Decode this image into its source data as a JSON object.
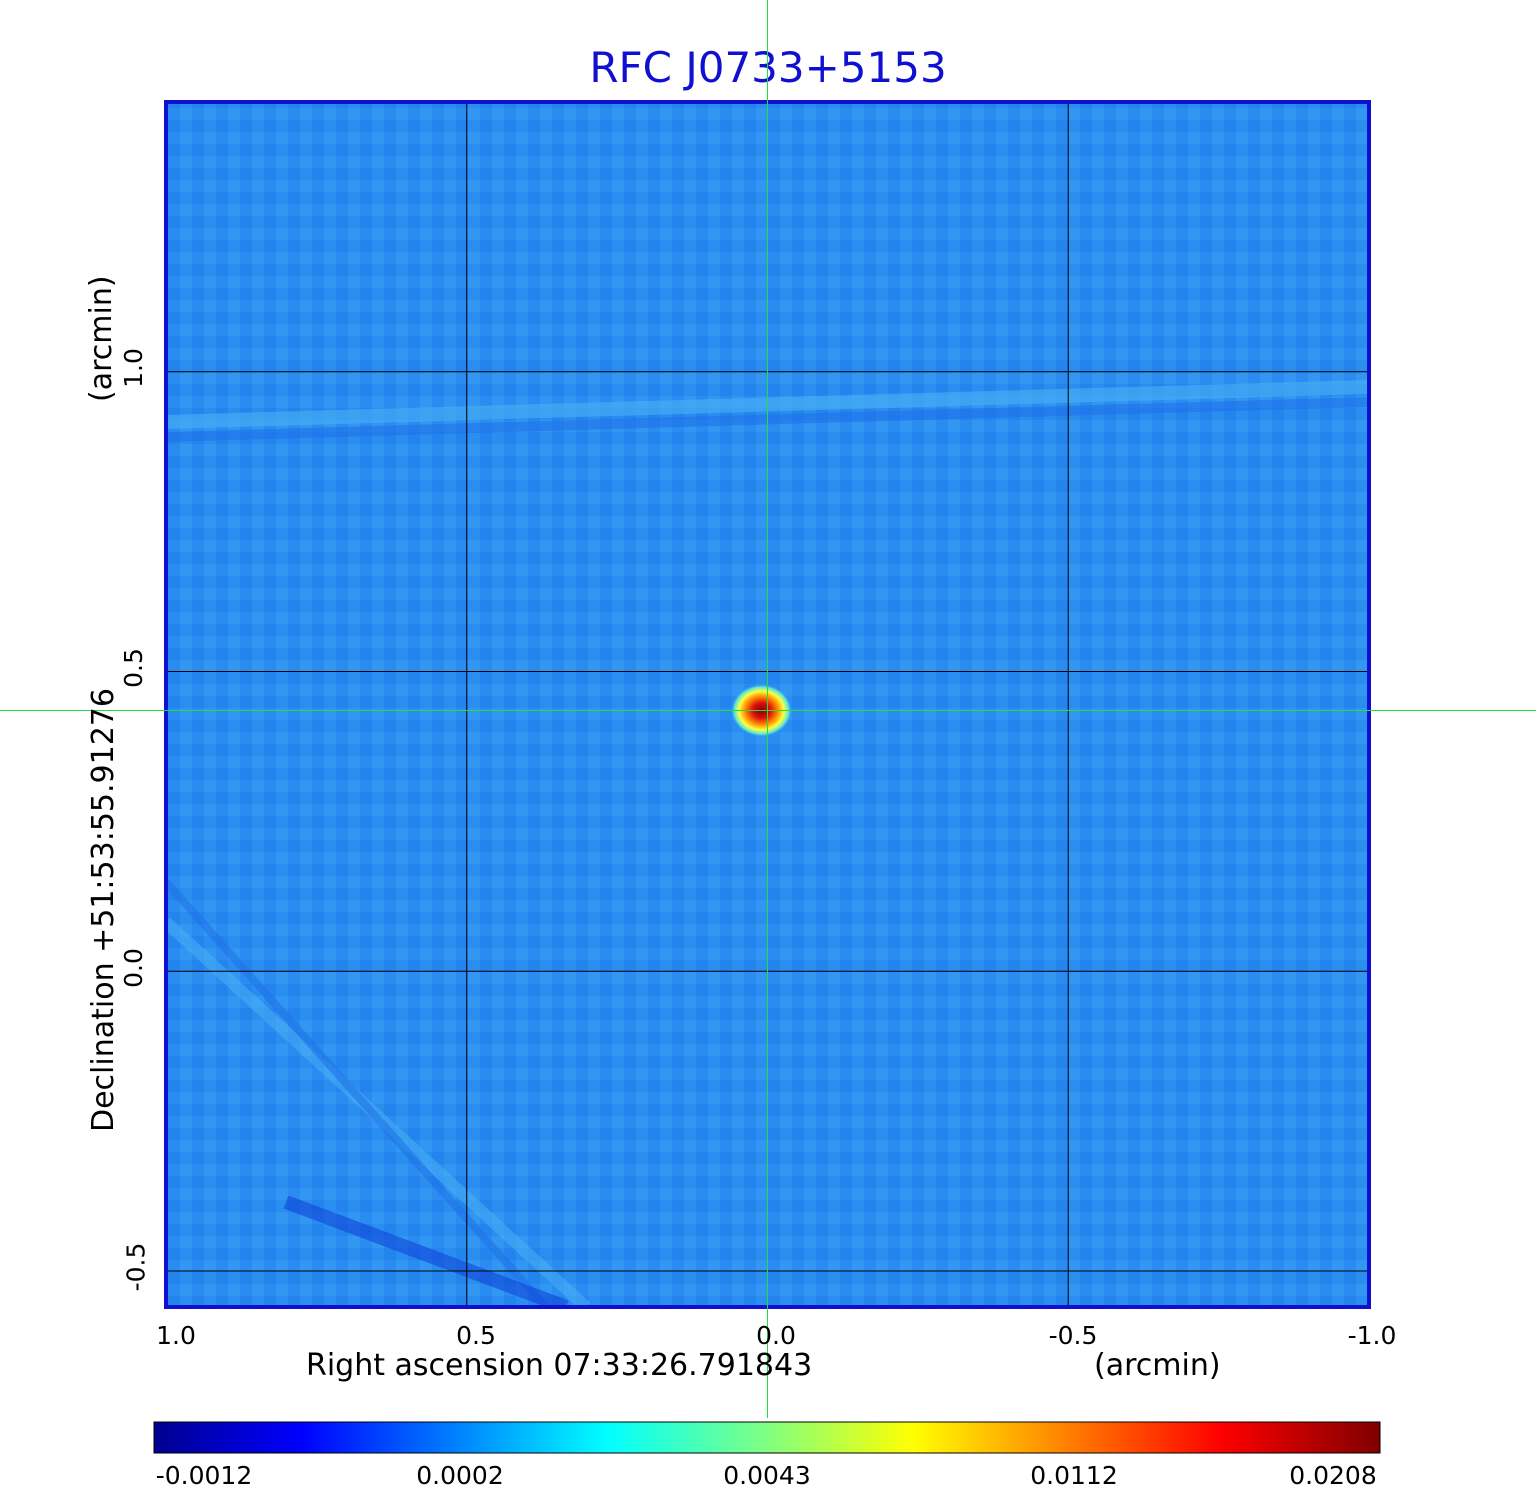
{
  "chart_data": {
    "type": "heatmap",
    "title": "RFC J0733+5153",
    "xlabel": "Right ascension  07:33:26.791843",
    "xunit": "(arcmin)",
    "ylabel": "Declination  +51:53:55.91276",
    "yunit": "(arcmin)",
    "xlim": [
      1.0,
      -1.0
    ],
    "ylim": [
      -0.56,
      1.45
    ],
    "x_ticks": [
      "1.0",
      "0.5",
      "0.0",
      "-0.5",
      "-1.0"
    ],
    "x_tick_values": [
      1.0,
      0.5,
      0.0,
      -0.5,
      -1.0
    ],
    "y_ticks": [
      "-0.5",
      "0.0",
      "0.5",
      "1.0"
    ],
    "y_tick_values": [
      -0.5,
      0.0,
      0.5,
      1.0
    ],
    "grid": true,
    "crosshair": {
      "x": 0.0,
      "y": 0.435
    },
    "peak": {
      "x": 0.01,
      "y": 0.435,
      "value": 0.0208
    },
    "colorbar": {
      "ticks": [
        "-0.0012",
        "0.0002",
        "0.0043",
        "0.0112",
        "0.0208"
      ],
      "colormap": [
        "#00008f",
        "#0000ff",
        "#00ffff",
        "#ffff00",
        "#ff0000",
        "#800000"
      ]
    },
    "colors": {
      "title": "#1010d0",
      "frame": "#1010d0",
      "crosshair": "#22dd44",
      "background_field": "#2a8cf0"
    }
  }
}
